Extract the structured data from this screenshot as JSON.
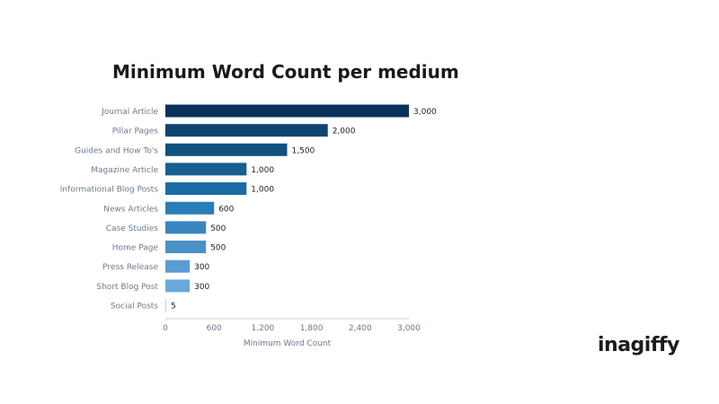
{
  "chart_data": {
    "type": "bar",
    "orientation": "horizontal",
    "title": "Minimum Word Count per medium",
    "xlabel": "Minimum Word Count",
    "ylabel": "",
    "categories": [
      "Journal Article",
      "Pillar Pages",
      "Guides and How To's",
      "Magazine Article",
      "Informational Blog Posts",
      "News Articles",
      "Case Studies",
      "Home Page",
      "Press Release",
      "Short Blog Post",
      "Social Posts"
    ],
    "values": [
      3000,
      2000,
      1500,
      1000,
      1000,
      600,
      500,
      500,
      300,
      300,
      5
    ],
    "value_labels": [
      "3,000",
      "2,000",
      "1,500",
      "1,000",
      "1,000",
      "600",
      "500",
      "500",
      "300",
      "300",
      "5"
    ],
    "xlim": [
      0,
      3000
    ],
    "x_ticks": [
      0,
      600,
      1200,
      1800,
      2400,
      3000
    ],
    "x_tick_labels": [
      "0",
      "600",
      "1,200",
      "1,800",
      "2,400",
      "3,000"
    ],
    "grid": false,
    "legend": "none",
    "bar_colors": [
      "#0a3159",
      "#0d4470",
      "#10517f",
      "#155f92",
      "#1a6ba3",
      "#2a7db7",
      "#3a86c0",
      "#4b92c9",
      "#5b9cd1",
      "#6aa8da",
      "#b6cfe8"
    ],
    "axis_color": "#c8cfd8"
  },
  "brand": {
    "name": "inagiffy"
  }
}
